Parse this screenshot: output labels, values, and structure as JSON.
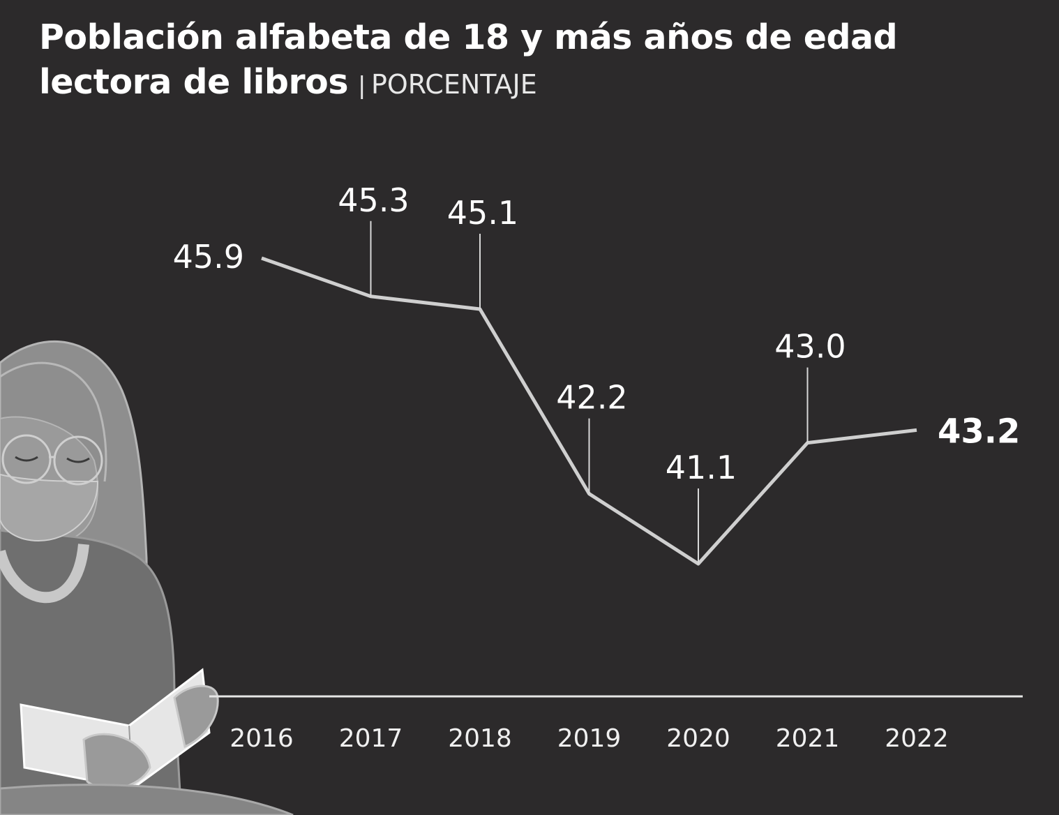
{
  "header": {
    "title": "Población alfabeta de 18 y más años de edad lectora de libros",
    "separator": "|",
    "unit": "PORCENTAJE"
  },
  "illustration": {
    "subject": "woman-reading-book-icon"
  },
  "colors": {
    "background": "#2c2a2b",
    "line": "#d0d0d0",
    "text": "#ffffff",
    "illustration": "#8a8a8a"
  },
  "chart_data": {
    "type": "line",
    "title": "Población alfabeta de 18 y más años de edad lectora de libros",
    "subtitle": "PORCENTAJE",
    "categories": [
      "2016",
      "2017",
      "2018",
      "2019",
      "2020",
      "2021",
      "2022"
    ],
    "values": [
      45.9,
      45.3,
      45.1,
      42.2,
      41.1,
      43.0,
      43.2
    ],
    "labels": [
      "45.9",
      "45.3",
      "45.1",
      "42.2",
      "41.1",
      "43.0",
      "43.2"
    ],
    "highlighted": "2022",
    "xlabel": "",
    "ylabel": "",
    "grid": false
  }
}
